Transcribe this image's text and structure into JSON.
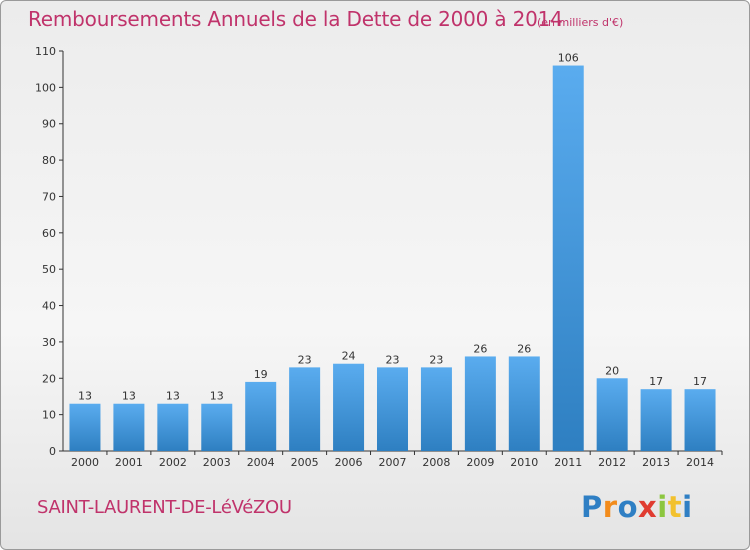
{
  "title": "Remboursements Annuels de la Dette de 2000 à 2014",
  "units": "(en milliers d'€)",
  "commune": "SAINT-LAURENT-DE-LéVéZOU",
  "logo_text": "Proxiti",
  "colors": {
    "title": "#c0336b",
    "bar_top": "#5aacef",
    "bar_bottom": "#2e7fc1",
    "axis": "#333333"
  },
  "chart_data": {
    "type": "bar",
    "categories": [
      "2000",
      "2001",
      "2002",
      "2003",
      "2004",
      "2005",
      "2006",
      "2007",
      "2008",
      "2009",
      "2010",
      "2011",
      "2012",
      "2013",
      "2014"
    ],
    "values": [
      13,
      13,
      13,
      13,
      19,
      23,
      24,
      23,
      23,
      26,
      26,
      106,
      20,
      17,
      17
    ],
    "title": "Remboursements Annuels de la Dette de 2000 à 2014",
    "ylim": [
      0,
      110
    ],
    "yticks": [
      0,
      10,
      20,
      30,
      40,
      50,
      60,
      70,
      80,
      90,
      100,
      110
    ],
    "grid": false,
    "data_labels": true
  }
}
